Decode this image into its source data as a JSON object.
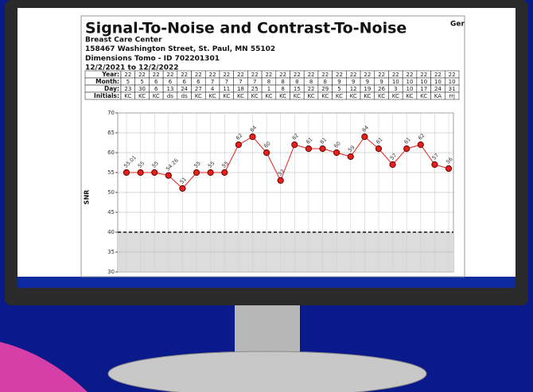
{
  "chart_data": {
    "type": "line",
    "title": "Signal-To-Noise and Contrast-To-Noise",
    "corner_text": "Ger",
    "subtitle_lines": [
      "Breast Care Center",
      "158467 Washington Street, St. Paul, MN 55102",
      "Dimensions Tomo - ID 702201301",
      "12/2/2021 to 12/2/2022"
    ],
    "table": {
      "row_labels": [
        "Year:",
        "Month:",
        "Day:",
        "Initials:"
      ],
      "rows": [
        [
          "22",
          "22",
          "22",
          "22",
          "22",
          "22",
          "22",
          "22",
          "22",
          "22",
          "22",
          "22",
          "22",
          "22",
          "22",
          "22",
          "22",
          "22",
          "22",
          "22",
          "22",
          "22",
          "22",
          "22"
        ],
        [
          "5",
          "5",
          "6",
          "6",
          "6",
          "6",
          "7",
          "7",
          "7",
          "7",
          "8",
          "8",
          "8",
          "8",
          "8",
          "9",
          "9",
          "9",
          "9",
          "10",
          "10",
          "10",
          "10",
          "10"
        ],
        [
          "23",
          "30",
          "6",
          "13",
          "24",
          "27",
          "4",
          "11",
          "18",
          "25",
          "1",
          "8",
          "15",
          "22",
          "29",
          "5",
          "12",
          "19",
          "26",
          "3",
          "10",
          "17",
          "24",
          "31"
        ],
        [
          "KC",
          "KC",
          "KC",
          "ds",
          "ds",
          "KC",
          "KC",
          "KC",
          "KC",
          "KC",
          "KC",
          "KC",
          "KC",
          "KC",
          "KC",
          "KC",
          "KC",
          "KC",
          "KC",
          "KC",
          "KC",
          "KC",
          "KA",
          "rrj"
        ]
      ]
    },
    "y_label": "SNR",
    "series": [
      {
        "name": "SNR",
        "color": "#e8201c",
        "values": [
          55.01,
          55,
          55,
          54.26,
          51,
          55,
          55,
          55,
          62,
          64,
          60,
          53,
          62,
          61,
          61,
          60,
          59,
          64,
          61,
          57,
          61,
          62,
          57,
          56
        ]
      }
    ],
    "ylim": [
      30,
      70
    ],
    "yticks": [
      30,
      35,
      40,
      45,
      50,
      55,
      60,
      65,
      70
    ],
    "grid": true,
    "threshold": 40
  }
}
